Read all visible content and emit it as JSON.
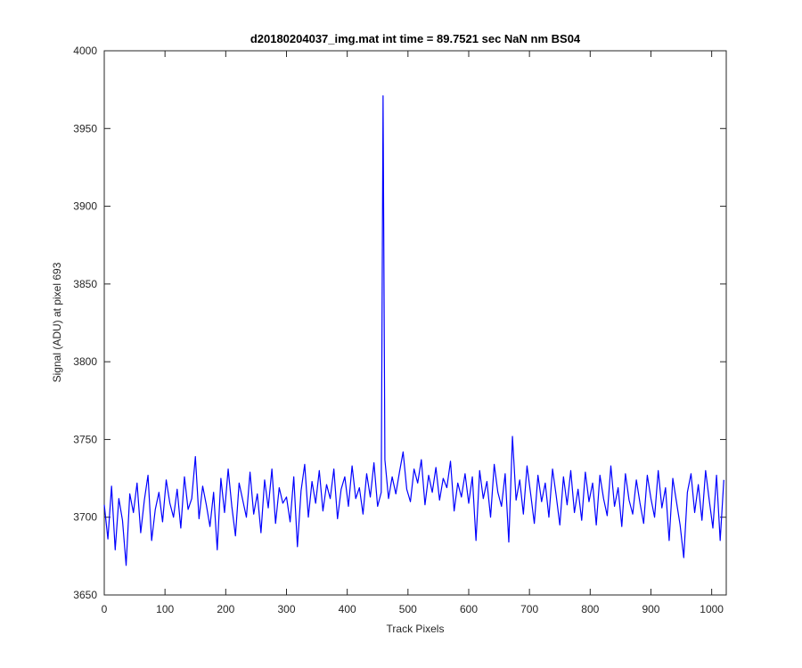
{
  "chart_data": {
    "type": "line",
    "title": "d20180204037_img.mat int time = 89.7521 sec  NaN nm BS04",
    "x_label": "Track Pixels",
    "y_label": "Signal (ADU) at pixel 693",
    "x": [
      0,
      6,
      12,
      18,
      24,
      30,
      36,
      42,
      48,
      54,
      60,
      66,
      72,
      78,
      84,
      90,
      96,
      102,
      108,
      114,
      120,
      126,
      132,
      138,
      144,
      150,
      156,
      162,
      168,
      174,
      180,
      186,
      192,
      198,
      204,
      210,
      216,
      222,
      228,
      234,
      240,
      246,
      252,
      258,
      264,
      270,
      276,
      282,
      288,
      294,
      300,
      306,
      312,
      318,
      324,
      330,
      336,
      342,
      348,
      354,
      360,
      366,
      372,
      378,
      384,
      390,
      396,
      402,
      408,
      414,
      420,
      426,
      432,
      438,
      444,
      450,
      456,
      459,
      462,
      468,
      474,
      480,
      486,
      492,
      498,
      504,
      510,
      516,
      522,
      528,
      534,
      540,
      546,
      552,
      558,
      564,
      570,
      576,
      582,
      588,
      594,
      600,
      606,
      612,
      618,
      624,
      630,
      636,
      642,
      648,
      654,
      660,
      666,
      672,
      678,
      684,
      690,
      696,
      702,
      708,
      714,
      720,
      726,
      732,
      738,
      744,
      750,
      756,
      762,
      768,
      774,
      780,
      786,
      792,
      798,
      804,
      810,
      816,
      822,
      828,
      834,
      840,
      846,
      852,
      858,
      864,
      870,
      876,
      882,
      888,
      894,
      900,
      906,
      912,
      918,
      924,
      930,
      936,
      942,
      948,
      954,
      960,
      966,
      972,
      978,
      984,
      990,
      996,
      1002,
      1008,
      1014,
      1020
    ],
    "series": [
      {
        "color": "#0000ff",
        "values": [
          3708,
          3686,
          3720,
          3679,
          3712,
          3698,
          3669,
          3715,
          3703,
          3722,
          3690,
          3711,
          3727,
          3685,
          3705,
          3716,
          3697,
          3724,
          3709,
          3700,
          3718,
          3693,
          3726,
          3705,
          3712,
          3739,
          3699,
          3720,
          3708,
          3694,
          3716,
          3679,
          3725,
          3703,
          3731,
          3707,
          3688,
          3722,
          3711,
          3700,
          3729,
          3702,
          3715,
          3690,
          3724,
          3706,
          3731,
          3696,
          3719,
          3709,
          3713,
          3697,
          3726,
          3681,
          3717,
          3734,
          3700,
          3723,
          3709,
          3730,
          3704,
          3721,
          3712,
          3731,
          3699,
          3718,
          3726,
          3707,
          3733,
          3712,
          3719,
          3702,
          3728,
          3713,
          3735,
          3707,
          3716,
          3971,
          3737,
          3712,
          3726,
          3715,
          3729,
          3742,
          3718,
          3710,
          3731,
          3722,
          3737,
          3708,
          3727,
          3716,
          3732,
          3711,
          3725,
          3719,
          3736,
          3704,
          3722,
          3713,
          3728,
          3709,
          3726,
          3685,
          3730,
          3712,
          3723,
          3700,
          3734,
          3716,
          3707,
          3728,
          3684,
          3752,
          3711,
          3724,
          3702,
          3733,
          3715,
          3696,
          3727,
          3710,
          3722,
          3700,
          3731,
          3714,
          3695,
          3726,
          3708,
          3730,
          3703,
          3718,
          3698,
          3729,
          3710,
          3722,
          3695,
          3727,
          3712,
          3701,
          3733,
          3707,
          3719,
          3694,
          3728,
          3711,
          3702,
          3724,
          3709,
          3696,
          3727,
          3712,
          3700,
          3730,
          3706,
          3719,
          3685,
          3725,
          3710,
          3695,
          3674,
          3716,
          3728,
          3703,
          3721,
          3698,
          3730,
          3711,
          3693,
          3727,
          3685,
          3724
        ]
      }
    ],
    "xlim": [
      0,
      1024
    ],
    "ylim": [
      3650,
      4000
    ],
    "xticks": [
      0,
      100,
      200,
      300,
      400,
      500,
      600,
      700,
      800,
      900,
      1000
    ],
    "yticks": [
      3650,
      3700,
      3750,
      3800,
      3850,
      3900,
      3950,
      4000
    ],
    "grid": false
  }
}
